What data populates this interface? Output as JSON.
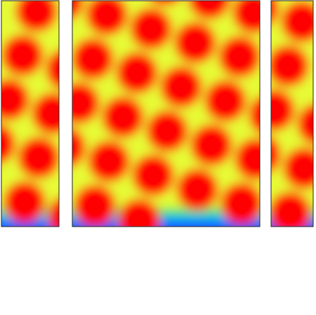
{
  "chart_data": {
    "type": "heatmap",
    "tick_labels": false,
    "color_range": [
      0,
      1
    ],
    "colors": [
      "#1a3cff",
      "#00c8ff",
      "#30e060",
      "#ffff30",
      "#ff0000"
    ],
    "panels": [
      {
        "xlim": [
          0,
          8.2
        ],
        "ylim": [
          0,
          32.2
        ],
        "background_value": 0.72,
        "blob_value": 1,
        "blobs": [
          {
            "x": 5.0,
            "y": 30.7,
            "r": 3.0
          },
          {
            "x": 3.0,
            "y": 24.4,
            "r": 3.0
          },
          {
            "x": 9.3,
            "y": 22.4,
            "r": 3.0
          },
          {
            "x": 1.0,
            "y": 18.1,
            "r": 3.0
          },
          {
            "x": 7.3,
            "y": 16.1,
            "r": 3.0
          },
          {
            "x": -1.0,
            "y": 11.8,
            "r": 3.0
          },
          {
            "x": 5.3,
            "y": 9.8,
            "r": 3.0
          },
          {
            "x": 3.3,
            "y": 3.5,
            "r": 3.0
          },
          {
            "x": 9.6,
            "y": 1.5,
            "r": 3.0
          }
        ],
        "layers": [
          {
            "y0": 0,
            "y1": 0.7,
            "value": 0.05
          },
          {
            "y0": 0.7,
            "y1": 1.4,
            "value": 0.2
          },
          {
            "y0": 1.4,
            "y1": 2.1,
            "value": 0.4
          },
          {
            "y0": 2.1,
            "y1": 2.8,
            "value": 0.6
          }
        ]
      },
      {
        "xlim": [
          0,
          26.7
        ],
        "ylim": [
          0,
          32.2
        ],
        "background_value": 0.72,
        "blob_value": 1,
        "blobs": [
          {
            "x": -1.4,
            "y": 32.2,
            "r": 3.0
          },
          {
            "x": 4.9,
            "y": 30.2,
            "r": 3.0
          },
          {
            "x": 11.2,
            "y": 28.2,
            "r": 3.0
          },
          {
            "x": 17.5,
            "y": 26.2,
            "r": 3.0
          },
          {
            "x": 23.8,
            "y": 24.2,
            "r": 3.0
          },
          {
            "x": 13.2,
            "y": 34.5,
            "r": 3.0
          },
          {
            "x": 19.5,
            "y": 32.5,
            "r": 3.0
          },
          {
            "x": 25.8,
            "y": 30.5,
            "r": 3.0
          },
          {
            "x": 2.9,
            "y": 23.9,
            "r": 3.0
          },
          {
            "x": 9.2,
            "y": 21.9,
            "r": 3.0
          },
          {
            "x": 15.5,
            "y": 19.9,
            "r": 3.0
          },
          {
            "x": 21.8,
            "y": 17.9,
            "r": 3.0
          },
          {
            "x": 28.1,
            "y": 15.9,
            "r": 3.0
          },
          {
            "x": 0.9,
            "y": 17.6,
            "r": 3.0
          },
          {
            "x": 7.2,
            "y": 15.6,
            "r": 3.0
          },
          {
            "x": 13.5,
            "y": 13.6,
            "r": 3.0
          },
          {
            "x": 19.8,
            "y": 11.6,
            "r": 3.0
          },
          {
            "x": 26.1,
            "y": 9.6,
            "r": 3.0
          },
          {
            "x": -1.1,
            "y": 11.3,
            "r": 3.0
          },
          {
            "x": 5.2,
            "y": 9.3,
            "r": 3.0
          },
          {
            "x": 11.5,
            "y": 7.3,
            "r": 3.0
          },
          {
            "x": 17.8,
            "y": 5.3,
            "r": 3.0
          },
          {
            "x": 24.1,
            "y": 3.3,
            "r": 3.0
          },
          {
            "x": 3.2,
            "y": 3.0,
            "r": 3.0
          },
          {
            "x": 9.5,
            "y": 1.0,
            "r": 3.0
          }
        ],
        "layers": [
          {
            "y0": 0,
            "y1": 0.7,
            "value": 0.05
          },
          {
            "y0": 0.7,
            "y1": 1.4,
            "value": 0.2
          },
          {
            "y0": 1.4,
            "y1": 2.1,
            "value": 0.4
          },
          {
            "y0": 2.1,
            "y1": 2.8,
            "value": 0.6
          }
        ]
      },
      {
        "xlim": [
          0,
          6.0
        ],
        "ylim": [
          0,
          32.2
        ],
        "background_value": 0.72,
        "blob_value": 1,
        "blobs": [
          {
            "x": -1.9,
            "y": 31.2,
            "r": 3.0
          },
          {
            "x": 4.4,
            "y": 29.2,
            "r": 3.0
          },
          {
            "x": 2.4,
            "y": 22.9,
            "r": 3.0
          },
          {
            "x": 0.4,
            "y": 16.6,
            "r": 3.0
          },
          {
            "x": 6.7,
            "y": 14.6,
            "r": 3.0
          },
          {
            "x": -1.6,
            "y": 10.3,
            "r": 3.0
          },
          {
            "x": 4.7,
            "y": 8.3,
            "r": 3.0
          },
          {
            "x": 2.7,
            "y": 2.0,
            "r": 3.0
          }
        ],
        "layers": [
          {
            "y0": 0,
            "y1": 0.7,
            "value": 0.05
          },
          {
            "y0": 0.7,
            "y1": 1.4,
            "value": 0.2
          },
          {
            "y0": 1.4,
            "y1": 2.1,
            "value": 0.4
          },
          {
            "y0": 2.1,
            "y1": 2.8,
            "value": 0.6
          }
        ]
      }
    ]
  }
}
